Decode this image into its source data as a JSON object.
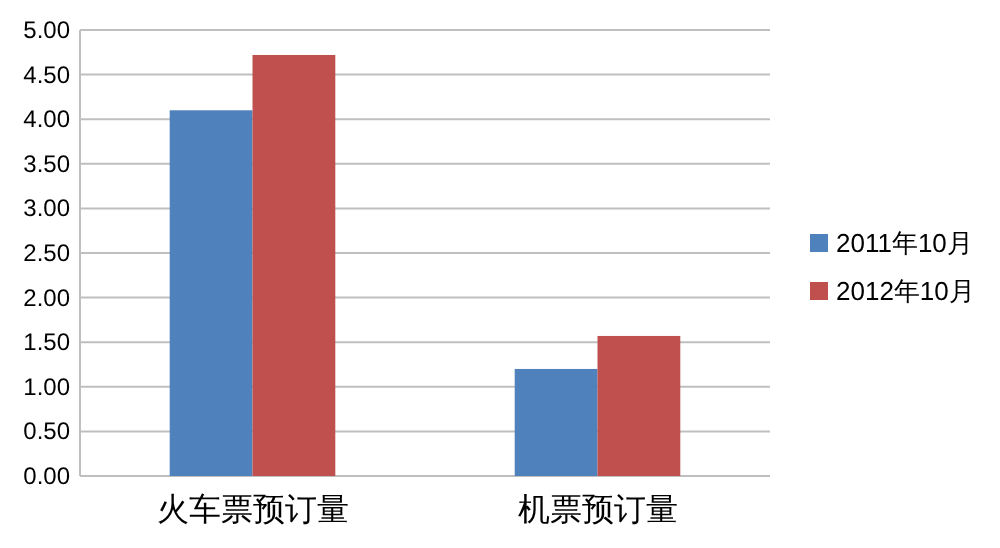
{
  "chart_data": {
    "type": "bar",
    "categories": [
      "火车票预订量",
      "机票预订量"
    ],
    "series": [
      {
        "name": "2011年10月",
        "color": "#4f81bd",
        "values": [
          4.1,
          1.2
        ]
      },
      {
        "name": "2012年10月",
        "color": "#c0504d",
        "values": [
          4.72,
          1.57
        ]
      }
    ],
    "ylim": [
      0,
      5
    ],
    "yticks": [
      {
        "value": 0,
        "label": "0.00"
      },
      {
        "value": 0.5,
        "label": "0.50"
      },
      {
        "value": 1,
        "label": "1.00"
      },
      {
        "value": 1.5,
        "label": "1.50"
      },
      {
        "value": 2,
        "label": "2.00"
      },
      {
        "value": 2.5,
        "label": "2.50"
      },
      {
        "value": 3,
        "label": "3.00"
      },
      {
        "value": 3.5,
        "label": "3.50"
      },
      {
        "value": 4,
        "label": "4.00"
      },
      {
        "value": 4.5,
        "label": "4.50"
      },
      {
        "value": 5,
        "label": "5.00"
      }
    ],
    "grid": "y",
    "legend": "right"
  }
}
